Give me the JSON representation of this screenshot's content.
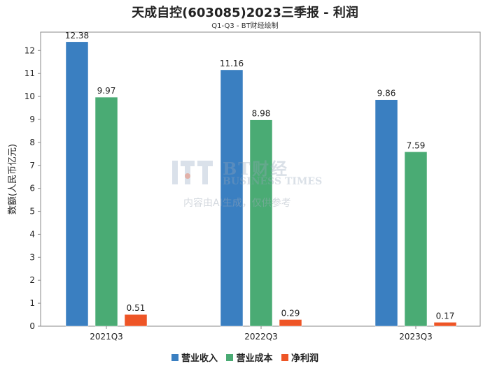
{
  "chart_data": {
    "type": "bar",
    "title": "天成自控(603085)2023三季报 - 利润",
    "subtitle": "Q1-Q3 - BT财经绘制",
    "ylabel": "数额(人民币亿元)",
    "categories": [
      "2021Q3",
      "2022Q3",
      "2023Q3"
    ],
    "series": [
      {
        "name": "营业收入",
        "color": "#3a7fc1",
        "values": [
          12.38,
          11.16,
          9.86
        ]
      },
      {
        "name": "营业成本",
        "color": "#4aab74",
        "values": [
          9.97,
          8.98,
          7.59
        ]
      },
      {
        "name": "净利润",
        "color": "#ee5526",
        "values": [
          0.51,
          0.29,
          0.17
        ]
      }
    ],
    "value_labels": [
      [
        "12.38",
        "11.16",
        "9.86"
      ],
      [
        "9.97",
        "8.98",
        "7.59"
      ],
      [
        "0.51",
        "0.29",
        "0.17"
      ]
    ],
    "ylim": [
      0,
      12.8
    ],
    "yticks": [
      0,
      1,
      2,
      3,
      4,
      5,
      6,
      7,
      8,
      9,
      10,
      11,
      12
    ],
    "grid": false,
    "legend": "bottom"
  },
  "watermark": {
    "line1": "BT财经",
    "line2": "BUSINESS TIMES",
    "line3": "内容由AI生成，仅供参考"
  }
}
